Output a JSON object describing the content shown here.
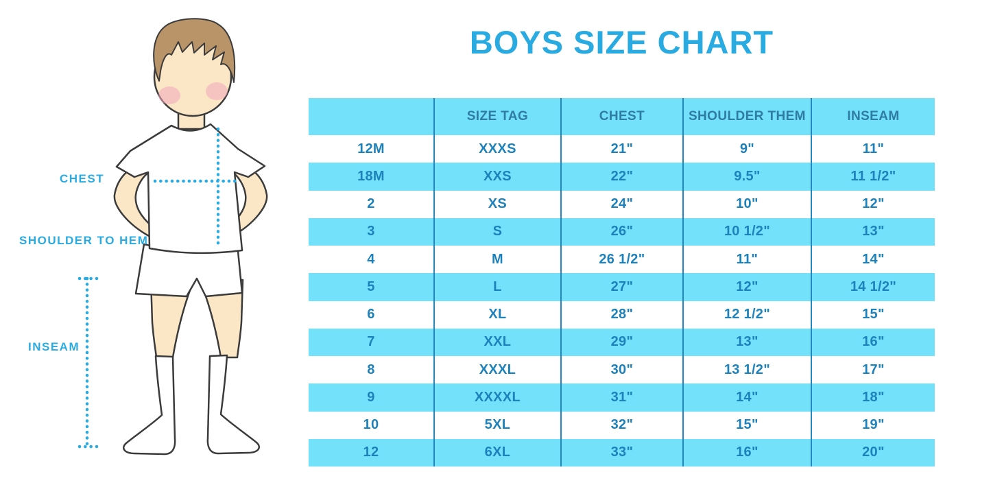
{
  "title": "BOYS SIZE CHART",
  "diagram": {
    "figure": "boy-in-tshirt-shorts-and-socks",
    "labels": {
      "chest": "CHEST",
      "shoulder_to_hem": "SHOULDER TO HEM",
      "inseam": "INSEAM"
    }
  },
  "chart_data": {
    "type": "table",
    "title": "BOYS SIZE CHART",
    "columns": [
      "",
      "SIZE TAG",
      "CHEST",
      "SHOULDER THEM",
      "INSEAM"
    ],
    "rows": [
      [
        "12M",
        "XXXS",
        "21\"",
        "9\"",
        "11\""
      ],
      [
        "18M",
        "XXS",
        "22\"",
        "9.5\"",
        "11 1/2\""
      ],
      [
        "2",
        "XS",
        "24\"",
        "10\"",
        "12\""
      ],
      [
        "3",
        "S",
        "26\"",
        "10 1/2\"",
        "13\""
      ],
      [
        "4",
        "M",
        "26 1/2\"",
        "11\"",
        "14\""
      ],
      [
        "5",
        "L",
        "27\"",
        "12\"",
        "14 1/2\""
      ],
      [
        "6",
        "XL",
        "28\"",
        "12 1/2\"",
        "15\""
      ],
      [
        "7",
        "XXL",
        "29\"",
        "13\"",
        "16\""
      ],
      [
        "8",
        "XXXL",
        "30\"",
        "13 1/2\"",
        "17\""
      ],
      [
        "9",
        "XXXXL",
        "31\"",
        "14\"",
        "18\""
      ],
      [
        "10",
        "5XL",
        "32\"",
        "15\"",
        "19\""
      ],
      [
        "12",
        "6XL",
        "33\"",
        "16\"",
        "20\""
      ]
    ],
    "layout": {
      "striping": "header and alternating rows light cyan, starting second data row",
      "gridlines": "vertical column dividers only"
    }
  },
  "colors": {
    "accent_blue": "#29ABE2",
    "row_band": "#74E1FA",
    "header_text": "#2F7CA2",
    "cell_text": "#1D82BB",
    "column_divider": "#2386BD",
    "outline": "#3B3B3B",
    "skin": "#FBE7C6",
    "hair": "#BA9469",
    "blush": "#F2A8BC"
  }
}
